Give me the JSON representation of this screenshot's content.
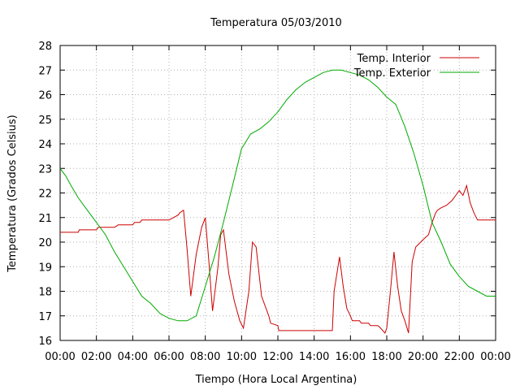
{
  "chart_data": {
    "type": "line",
    "title": "Temperatura 05/03/2010",
    "xlabel": "Tiempo (Hora Local Argentina)",
    "ylabel": "Temperatura (Grados Celsius)",
    "x_ticks": [
      "00:00",
      "02:00",
      "04:00",
      "06:00",
      "08:00",
      "10:00",
      "12:00",
      "14:00",
      "16:00",
      "18:00",
      "20:00",
      "22:00",
      "00:00"
    ],
    "xlim_hours": [
      0,
      24
    ],
    "ylim": [
      16,
      28
    ],
    "y_ticks": [
      16,
      17,
      18,
      19,
      20,
      21,
      22,
      23,
      24,
      25,
      26,
      27,
      28
    ],
    "grid": true,
    "legend_position": "top-right",
    "series": [
      {
        "name": "Temp. Interior",
        "color": "#cc0000",
        "x_hours": [
          0,
          1,
          1.05,
          2,
          2.1,
          3,
          3.1,
          3.2,
          4,
          4.1,
          4.4,
          4.5,
          5,
          6,
          6.5,
          6.6,
          6.8,
          7.0,
          7.2,
          7.5,
          7.8,
          8.0,
          8.2,
          8.4,
          8.7,
          8.85,
          9.0,
          9.3,
          9.6,
          9.9,
          10.1,
          10.4,
          10.6,
          10.8,
          11.1,
          11.5,
          11.6,
          12.0,
          12.05,
          14,
          15.0,
          15.1,
          15.4,
          15.6,
          15.8,
          16.0,
          16.1,
          16.5,
          16.6,
          17.0,
          17.1,
          17.5,
          17.6,
          17.9,
          18.0,
          18.2,
          18.4,
          18.6,
          18.8,
          19.0,
          19.2,
          19.4,
          19.6,
          20.0,
          20.3,
          20.5,
          20.7,
          20.8,
          21.0,
          21.3,
          21.6,
          21.8,
          22.0,
          22.2,
          22.4,
          22.6,
          22.8,
          23.0,
          24
        ],
        "values": [
          20.4,
          20.4,
          20.5,
          20.5,
          20.6,
          20.6,
          20.65,
          20.7,
          20.7,
          20.8,
          20.8,
          20.9,
          20.9,
          20.9,
          21.1,
          21.2,
          21.3,
          19.7,
          17.8,
          19.5,
          20.6,
          21.0,
          19.2,
          17.2,
          19.0,
          20.3,
          20.5,
          18.7,
          17.6,
          16.8,
          16.5,
          18.0,
          20.0,
          19.8,
          17.8,
          17.0,
          16.7,
          16.6,
          16.4,
          16.4,
          16.4,
          18.0,
          19.4,
          18.2,
          17.3,
          17.0,
          16.8,
          16.8,
          16.7,
          16.7,
          16.6,
          16.6,
          16.55,
          16.3,
          16.5,
          18.0,
          19.6,
          18.2,
          17.2,
          16.8,
          16.3,
          19.2,
          19.8,
          20.1,
          20.3,
          20.8,
          21.2,
          21.3,
          21.4,
          21.5,
          21.7,
          21.9,
          22.1,
          21.9,
          22.3,
          21.6,
          21.2,
          20.9,
          20.9
        ]
      },
      {
        "name": "Temp. Exterior",
        "color": "#00aa00",
        "x_hours": [
          0,
          0.3,
          0.6,
          1.0,
          1.5,
          2.0,
          2.5,
          3.0,
          3.5,
          4.0,
          4.5,
          5.0,
          5.5,
          6.0,
          6.5,
          7.0,
          7.5,
          8.0,
          8.5,
          9.0,
          9.5,
          10.0,
          10.5,
          11.0,
          11.5,
          12.0,
          12.5,
          13.0,
          13.5,
          14.0,
          14.5,
          15.0,
          15.5,
          16.0,
          16.5,
          17.0,
          17.5,
          18.0,
          18.5,
          19.0,
          19.5,
          20.0,
          20.5,
          21.0,
          21.5,
          22.0,
          22.5,
          23.0,
          23.5,
          24.0
        ],
        "values": [
          23.0,
          22.7,
          22.3,
          21.8,
          21.3,
          20.8,
          20.3,
          19.6,
          19.0,
          18.4,
          17.8,
          17.5,
          17.1,
          16.9,
          16.8,
          16.8,
          17.0,
          18.2,
          19.4,
          20.8,
          22.3,
          23.8,
          24.4,
          24.6,
          24.9,
          25.3,
          25.8,
          26.2,
          26.5,
          26.7,
          26.9,
          27.0,
          27.0,
          26.9,
          26.8,
          26.6,
          26.3,
          25.9,
          25.6,
          24.7,
          23.6,
          22.3,
          20.8,
          20.0,
          19.1,
          18.6,
          18.2,
          18.0,
          17.8,
          17.8
        ]
      }
    ]
  }
}
